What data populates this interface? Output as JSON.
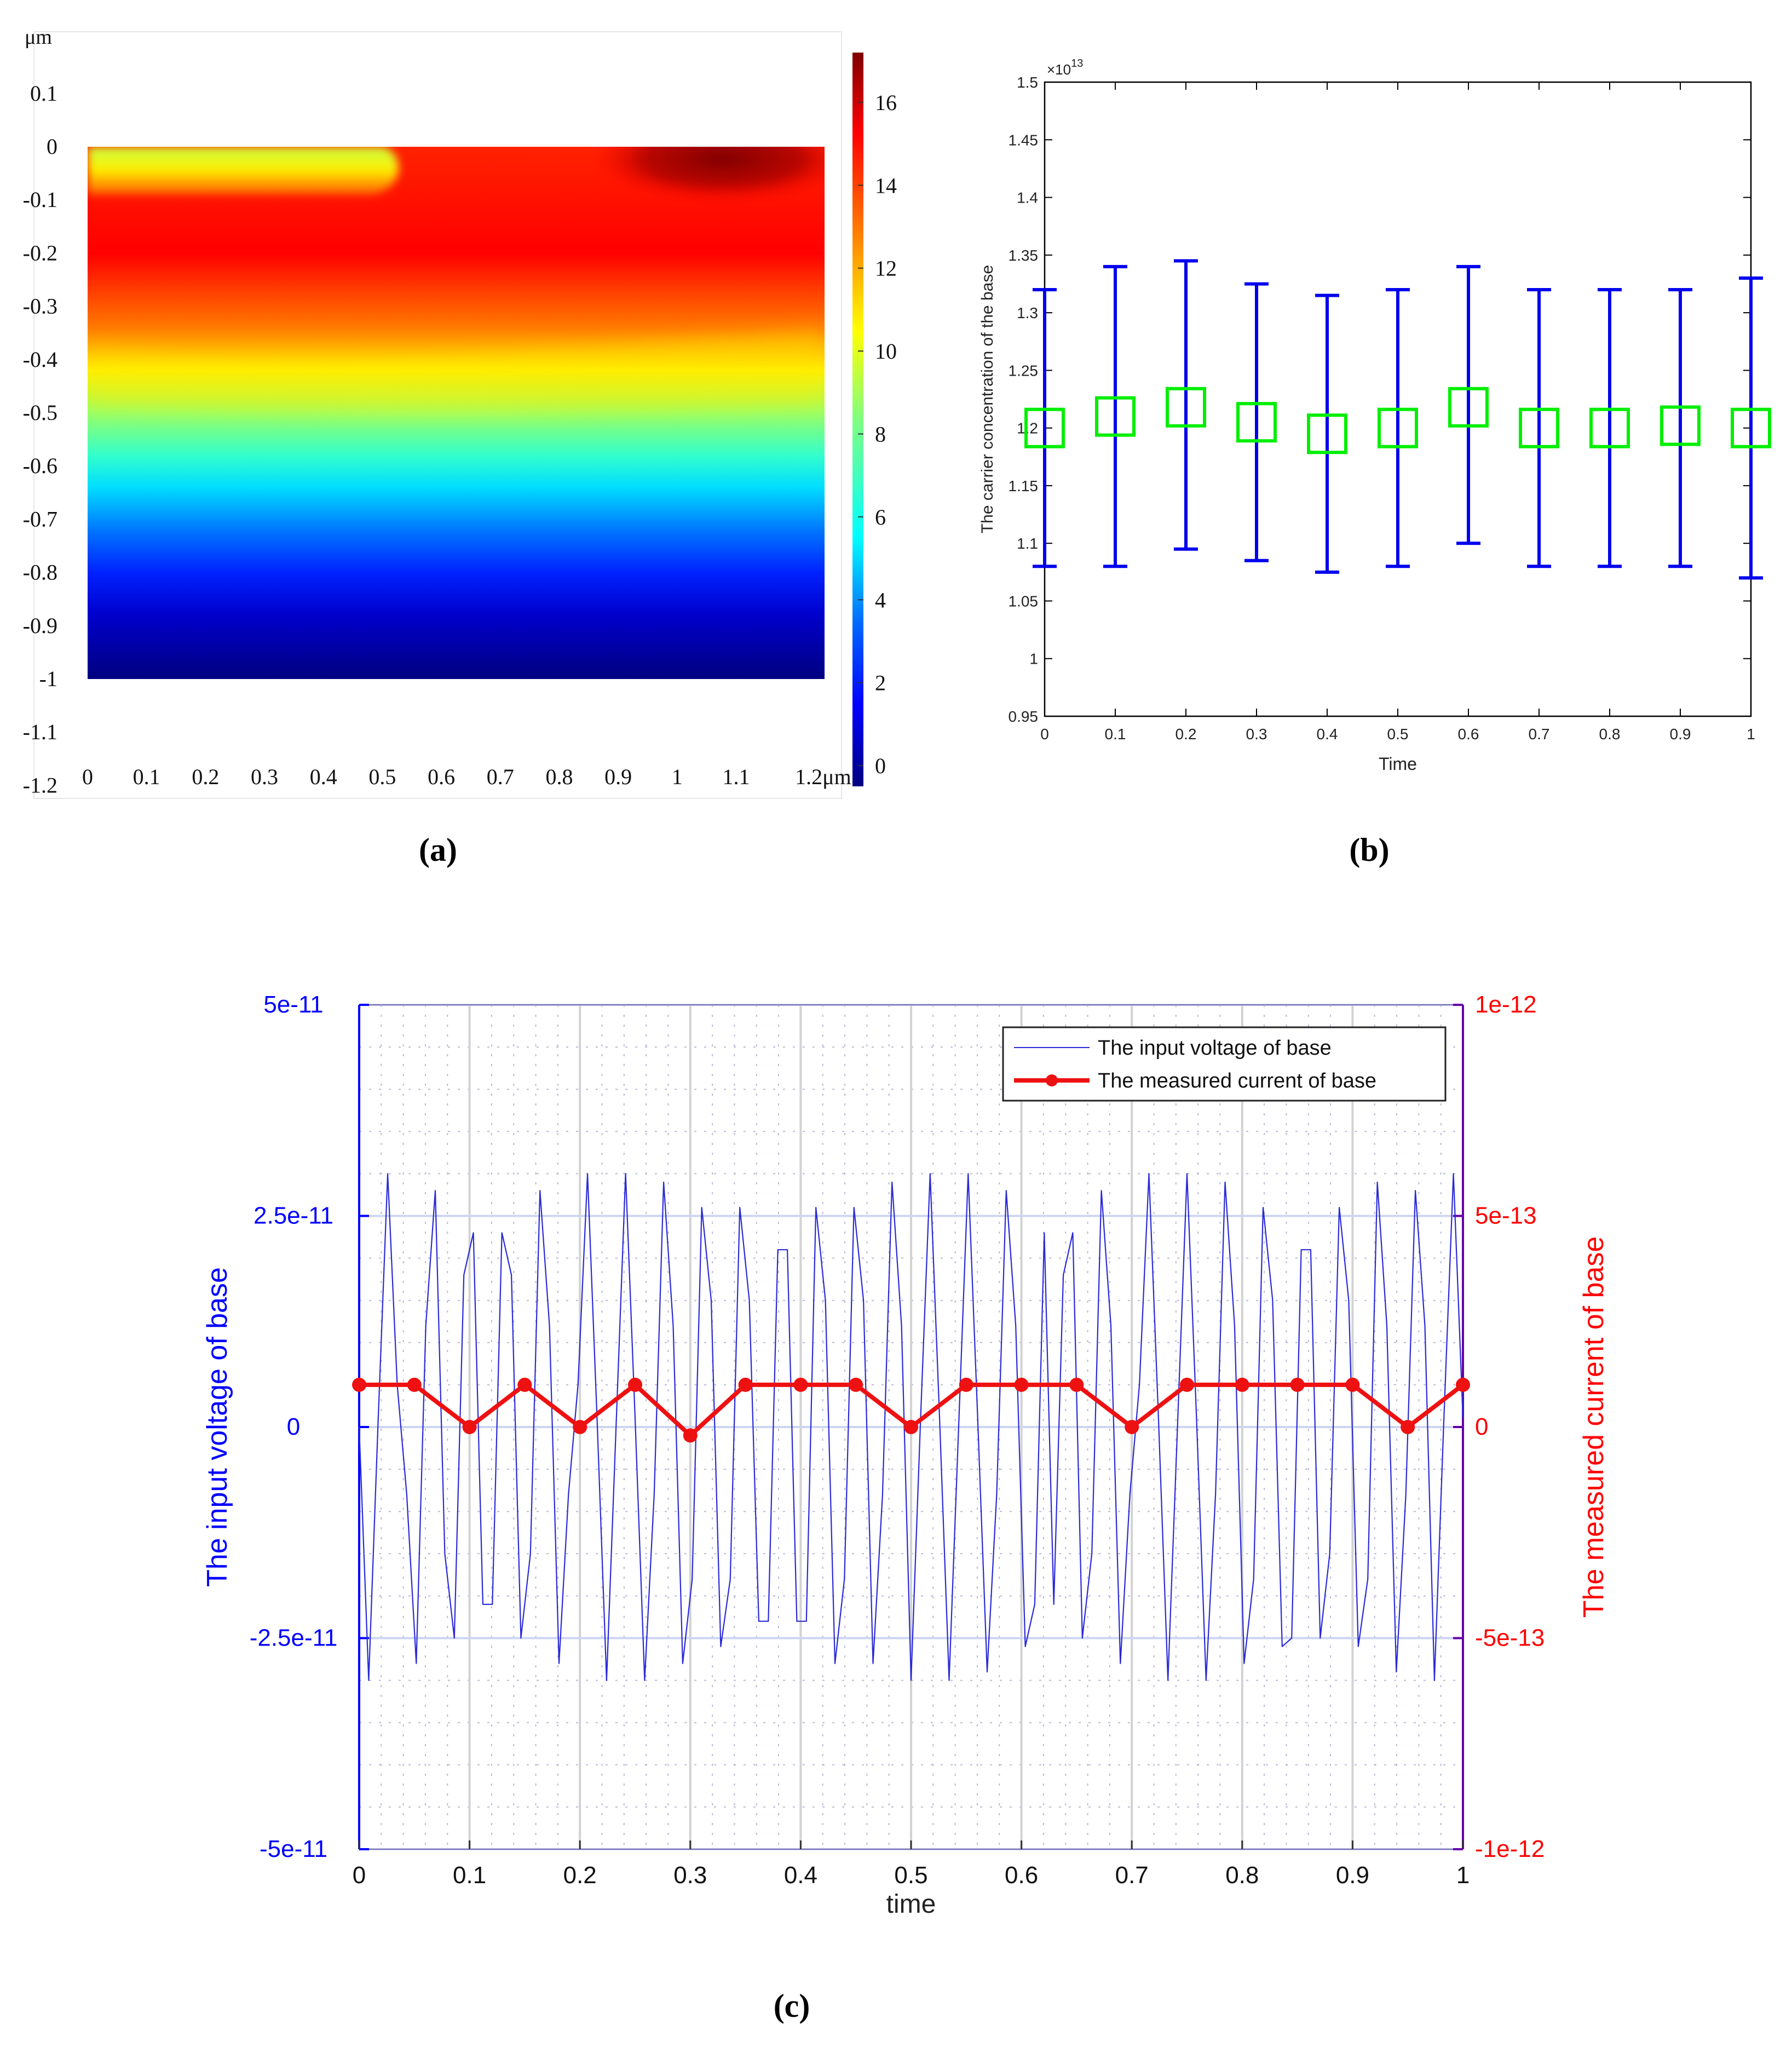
{
  "chart_data": [
    {
      "type": "heatmap",
      "panel_label": "(a)",
      "unit_label": "μm",
      "x_ticks": [
        "0",
        "0.1",
        "0.2",
        "0.3",
        "0.4",
        "0.5",
        "0.6",
        "0.7",
        "0.8",
        "0.9",
        "1",
        "1.1",
        "1.2μm"
      ],
      "y_ticks": [
        "0.1",
        "0",
        "-0.1",
        "-0.2",
        "-0.3",
        "-0.4",
        "-0.5",
        "-0.6",
        "-0.7",
        "-0.8",
        "-0.9",
        "-1",
        "-1.1",
        "-1.2"
      ],
      "y_range": [
        -1.2,
        0.17
      ],
      "x_range": [
        -0.03,
        1.27
      ],
      "data_region": {
        "x": [
          0,
          1.25
        ],
        "y": [
          -1,
          0
        ]
      },
      "colorbar_ticks": [
        "16",
        "14",
        "12",
        "10",
        "8",
        "6",
        "4",
        "2",
        "0"
      ],
      "colorbar_range": [
        -0.5,
        17.2
      ]
    },
    {
      "type": "errorbar",
      "panel_label": "(b)",
      "xlabel": "Time",
      "ylabel": "The carrier concentration of the base",
      "y_multiplier": "×10",
      "y_exponent": "13",
      "x_ticks": [
        "0",
        "0.1",
        "0.2",
        "0.3",
        "0.4",
        "0.5",
        "0.6",
        "0.7",
        "0.8",
        "0.9",
        "1"
      ],
      "y_ticks": [
        "1.5",
        "1.45",
        "1.4",
        "1.35",
        "1.3",
        "1.25",
        "1.2",
        "1.15",
        "1.1",
        "1.05",
        "1",
        "0.95"
      ],
      "ylim": [
        0.95,
        1.5
      ],
      "xlim": [
        0,
        1
      ],
      "x": [
        0,
        0.1,
        0.2,
        0.3,
        0.4,
        0.5,
        0.6,
        0.7,
        0.8,
        0.9,
        1.0
      ],
      "mean": [
        1.2,
        1.21,
        1.218,
        1.205,
        1.195,
        1.2,
        1.218,
        1.2,
        1.2,
        1.202,
        1.2
      ],
      "upper": [
        1.32,
        1.34,
        1.345,
        1.325,
        1.315,
        1.32,
        1.34,
        1.32,
        1.32,
        1.32,
        1.33
      ],
      "lower": [
        1.08,
        1.08,
        1.095,
        1.085,
        1.075,
        1.08,
        1.1,
        1.08,
        1.08,
        1.08,
        1.07
      ],
      "colors": {
        "bars": "#0000ee",
        "markers": "#00ee00"
      }
    },
    {
      "type": "line",
      "panel_label": "(c)",
      "xlabel": "time",
      "ylabel_left": "The input voltage of base",
      "ylabel_right": "The measured current of base",
      "x_ticks": [
        "0",
        "0.1",
        "0.2",
        "0.3",
        "0.4",
        "0.5",
        "0.6",
        "0.7",
        "0.8",
        "0.9",
        "1"
      ],
      "y_ticks_left": [
        "5e-11",
        "2.5e-11",
        "0",
        "-2.5e-11",
        "-5e-11"
      ],
      "y_ticks_right": [
        "1e-12",
        "5e-13",
        "0",
        "-5e-13",
        "-1e-12"
      ],
      "ylim_left": [
        -5e-11,
        5e-11
      ],
      "ylim_right": [
        -1e-12,
        1e-12
      ],
      "xlim": [
        0,
        1
      ],
      "legend": [
        "The input voltage of base",
        "The measured current of base"
      ],
      "legend_position": "top-right",
      "colors": {
        "voltage": "#2a2ad8",
        "current": "#ee1111",
        "left_axis": "#0000ff",
        "right_axis": "#ff0000"
      },
      "series": [
        {
          "name": "The input voltage of base",
          "values_e11": [
            0,
            -3.0,
            0.1,
            3.0,
            0.5,
            -0.8,
            -2.8,
            1.2,
            2.8,
            -1.5,
            -2.5,
            1.8,
            2.3,
            -2.1,
            -2.1,
            2.3,
            1.8,
            -2.5,
            -1.5,
            2.8,
            1.2,
            -2.8,
            -0.8,
            0.5,
            3.0,
            0.1,
            -3.0,
            0,
            3.0,
            0.1,
            -3.0,
            -0.8,
            2.9,
            1.2,
            -2.8,
            -1.8,
            2.6,
            1.5,
            -2.6,
            -1.8,
            2.6,
            1.5,
            -2.3,
            -2.3,
            2.1,
            2.1,
            -2.3,
            -2.3,
            2.6,
            1.5,
            -2.8,
            -1.8,
            2.6,
            1.5,
            -2.8,
            -0.8,
            2.9,
            1.2,
            -3.0,
            0.1,
            3.0,
            0.1,
            -3.0,
            0,
            3.0,
            0.1,
            -2.9,
            -0.8,
            2.8,
            1.2,
            -2.6,
            -2.1,
            2.3,
            -2.1,
            1.8,
            2.3,
            -2.5,
            -1.5,
            2.8,
            1.2,
            -2.8,
            -0.8,
            0.5,
            3.0,
            0.1,
            -3.0,
            0,
            3.0,
            0.1,
            -3.0,
            -0.8,
            2.9,
            1.2,
            -2.8,
            -1.8,
            2.6,
            1.5,
            -2.6,
            -2.5,
            2.1,
            2.1,
            -2.5,
            -1.5,
            2.6,
            1.5,
            -2.6,
            -1.8,
            2.9,
            1.2,
            -2.9,
            -0.8,
            2.8,
            1.2,
            -3.0,
            0.1,
            3.0,
            0.1
          ]
        },
        {
          "name": "The measured current of base",
          "x": [
            0,
            0.05,
            0.1,
            0.15,
            0.2,
            0.25,
            0.3,
            0.35,
            0.4,
            0.45,
            0.5,
            0.55,
            0.6,
            0.65,
            0.7,
            0.75,
            0.8,
            0.85,
            0.9,
            0.95,
            1.0
          ],
          "values_e13": [
            1.0,
            1.0,
            0.0,
            1.0,
            0.0,
            1.0,
            -0.2,
            1.0,
            1.0,
            1.0,
            0.0,
            1.0,
            1.0,
            1.0,
            0.0,
            1.0,
            1.0,
            1.0,
            1.0,
            0.0,
            1.0
          ]
        }
      ]
    }
  ]
}
